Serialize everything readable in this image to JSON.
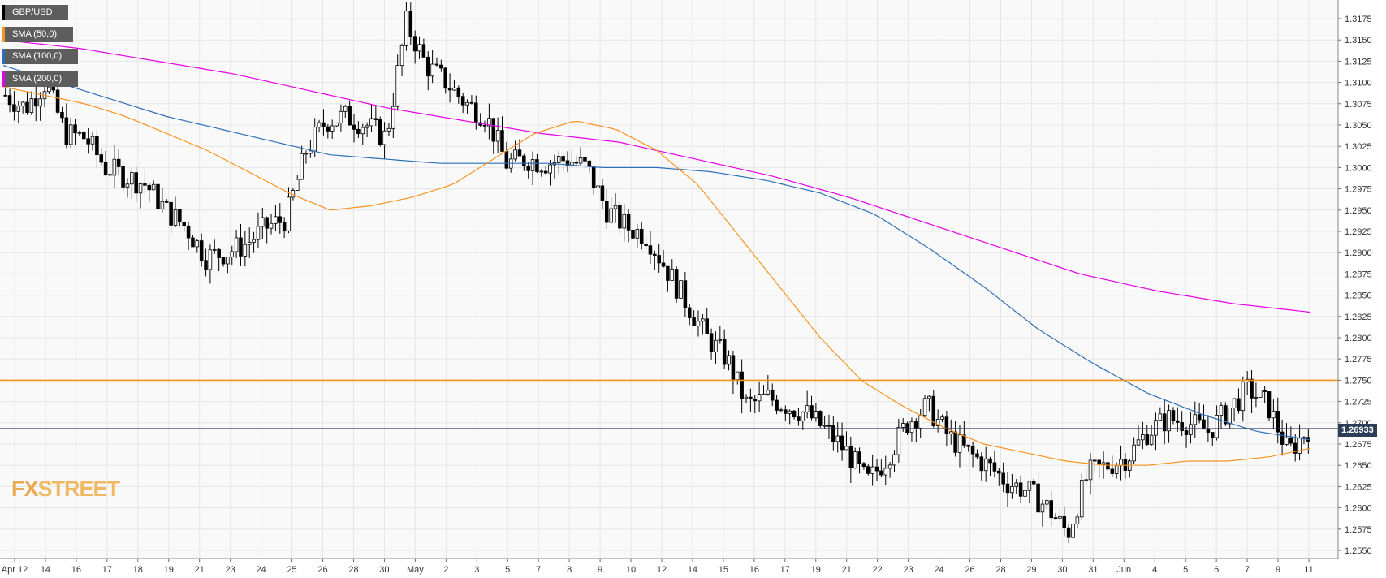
{
  "legend": [
    {
      "label": "GBP/USD",
      "color": "#000000"
    },
    {
      "label": "SMA (50,0)",
      "color": "#f7931e"
    },
    {
      "label": "SMA (100,0)",
      "color": "#2e6fb8"
    },
    {
      "label": "SMA (200,0)",
      "color": "#e600e6"
    }
  ],
  "logo": {
    "part1": "FX",
    "part2": "STREET"
  },
  "current_price_label": "1.26933",
  "colors": {
    "sma50": "#f7931e",
    "sma100": "#2e6fb8",
    "sma200": "#e600e6",
    "resistance": "#f7931e",
    "price_line": "#2c3e57"
  },
  "chart_data": {
    "type": "candlestick",
    "symbol": "GBP/USD",
    "y_ticks": [
      "1.3175",
      "1.3150",
      "1.3125",
      "1.3100",
      "1.3075",
      "1.3050",
      "1.3025",
      "1.3000",
      "1.2975",
      "1.2950",
      "1.2925",
      "1.2900",
      "1.2875",
      "1.2850",
      "1.2825",
      "1.2800",
      "1.2775",
      "1.2750",
      "1.2725",
      "1.2700",
      "1.2675",
      "1.2650",
      "1.2625",
      "1.2600",
      "1.2575",
      "1.2550"
    ],
    "y_range": [
      1.2538,
      1.3195
    ],
    "x_ticks": [
      "Apr 12",
      "14",
      "16",
      "17",
      "18",
      "19",
      "21",
      "23",
      "24",
      "25",
      "26",
      "28",
      "30",
      "May",
      "2",
      "3",
      "5",
      "7",
      "8",
      "9",
      "10",
      "12",
      "14",
      "15",
      "16",
      "17",
      "19",
      "21",
      "22",
      "23",
      "24",
      "26",
      "28",
      "29",
      "30",
      "31",
      "Jun",
      "4",
      "5",
      "6",
      "7",
      "9",
      "11"
    ],
    "horizontal_lines": [
      {
        "value": 1.275,
        "color": "#f7931e"
      },
      {
        "value": 1.26933,
        "color": "#2c3e57"
      }
    ],
    "close_path": [
      1.3085,
      1.307,
      1.31,
      1.304,
      1.3035,
      1.3,
      1.299,
      1.298,
      1.295,
      1.293,
      1.2895,
      1.29,
      1.291,
      1.293,
      1.294,
      1.302,
      1.3055,
      1.306,
      1.305,
      1.3035,
      1.317,
      1.312,
      1.31,
      1.3075,
      1.306,
      1.3005,
      1.301,
      1.3005,
      1.301,
      1.3,
      1.295,
      1.293,
      1.292,
      1.288,
      1.284,
      1.28,
      1.2775,
      1.272,
      1.273,
      1.272,
      1.271,
      1.269,
      1.2665,
      1.263,
      1.266,
      1.27,
      1.272,
      1.2685,
      1.2665,
      1.265,
      1.263,
      1.262,
      1.26,
      1.257,
      1.264,
      1.265,
      1.266,
      1.269,
      1.2705,
      1.27,
      1.269,
      1.2715,
      1.274,
      1.272,
      1.2665,
      1.2693
    ],
    "sma50_path": [
      1.3095,
      1.3085,
      1.3075,
      1.306,
      1.304,
      1.302,
      1.2995,
      1.297,
      1.295,
      1.2955,
      1.2965,
      1.298,
      1.301,
      1.304,
      1.3055,
      1.3045,
      1.302,
      1.298,
      1.292,
      1.286,
      1.28,
      1.275,
      1.272,
      1.2695,
      1.2675,
      1.2665,
      1.2655,
      1.265,
      1.265,
      1.2655,
      1.2655,
      1.266,
      1.267
    ],
    "sma100_path": [
      1.312,
      1.31,
      1.308,
      1.306,
      1.3045,
      1.303,
      1.3015,
      1.301,
      1.3005,
      1.3005,
      1.3005,
      1.3,
      1.3,
      1.2995,
      1.2985,
      1.297,
      1.2945,
      1.2905,
      1.286,
      1.281,
      1.277,
      1.2735,
      1.271,
      1.269,
      1.268
    ],
    "sma200_path": [
      1.315,
      1.314,
      1.3125,
      1.311,
      1.309,
      1.307,
      1.3055,
      1.304,
      1.303,
      1.301,
      1.299,
      1.2965,
      1.2935,
      1.2905,
      1.2875,
      1.2855,
      1.284,
      1.283
    ]
  }
}
